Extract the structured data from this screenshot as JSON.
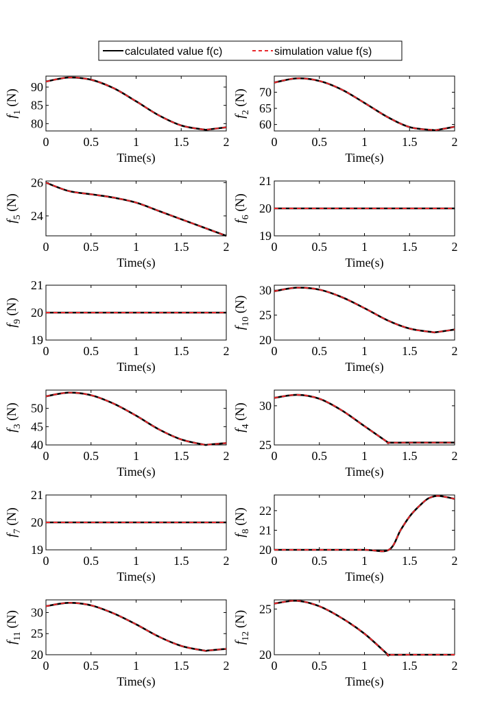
{
  "legend": {
    "items": [
      {
        "label": "calculated value f(c)",
        "color": "#000000",
        "style": "solid"
      },
      {
        "label": "simulation value f(s)",
        "color": "#e8262a",
        "style": "dashed"
      }
    ]
  },
  "chart_data": [
    {
      "type": "line",
      "ylabel_main": "f",
      "ylabel_sub": "1",
      "ylabel_unit": "(N)",
      "xlabel": "Time(s)",
      "xlim": [
        0,
        2
      ],
      "ylim": [
        78,
        93
      ],
      "xticks": [
        "0",
        "0.5",
        "1",
        "1.5",
        "2"
      ],
      "yticks": [
        80,
        85,
        90
      ],
      "series": [
        {
          "name": "calculated value f(c)",
          "x": [
            0,
            0.25,
            0.5,
            0.75,
            1.0,
            1.25,
            1.5,
            1.75,
            1.8,
            2.0
          ],
          "values": [
            91.5,
            92.6,
            92.0,
            89.7,
            86.1,
            82.3,
            79.5,
            78.4,
            78.4,
            79.0
          ]
        },
        {
          "name": "simulation value f(s)",
          "x": [
            0,
            0.25,
            0.5,
            0.75,
            1.0,
            1.25,
            1.5,
            1.75,
            1.8,
            2.0
          ],
          "values": [
            91.5,
            92.6,
            92.0,
            89.7,
            86.1,
            82.3,
            79.5,
            78.4,
            78.4,
            79.0
          ]
        }
      ]
    },
    {
      "type": "line",
      "ylabel_main": "f",
      "ylabel_sub": "2",
      "ylabel_unit": "(N)",
      "xlabel": "Time(s)",
      "xlim": [
        0,
        2
      ],
      "ylim": [
        58,
        75
      ],
      "xticks": [
        "0",
        "0.5",
        "1",
        "1.5",
        "2"
      ],
      "yticks": [
        60,
        65,
        70
      ],
      "series": [
        {
          "name": "calculated value f(c)",
          "x": [
            0,
            0.25,
            0.5,
            0.75,
            1.0,
            1.25,
            1.5,
            1.75,
            1.8,
            2.0
          ],
          "values": [
            73.0,
            74.3,
            73.5,
            70.8,
            66.7,
            62.4,
            59.2,
            58.3,
            58.3,
            59.3
          ]
        },
        {
          "name": "simulation value f(s)",
          "x": [
            0,
            0.25,
            0.5,
            0.75,
            1.0,
            1.25,
            1.5,
            1.75,
            1.8,
            2.0
          ],
          "values": [
            73.0,
            74.3,
            73.5,
            70.8,
            66.7,
            62.4,
            59.2,
            58.3,
            58.3,
            59.3
          ]
        }
      ]
    },
    {
      "type": "line",
      "ylabel_main": "f",
      "ylabel_sub": "5",
      "ylabel_unit": "(N)",
      "xlabel": "Time(s)",
      "xlim": [
        0,
        2
      ],
      "ylim": [
        22.8,
        26.1
      ],
      "xticks": [
        "0",
        "0.5",
        "1",
        "1.5",
        "2"
      ],
      "yticks": [
        24,
        26
      ],
      "series": [
        {
          "name": "calculated value f(c)",
          "x": [
            0,
            0.25,
            0.5,
            0.75,
            1.0,
            1.25,
            1.5,
            1.75,
            2.0
          ],
          "values": [
            26.0,
            25.5,
            25.3,
            25.1,
            24.8,
            24.3,
            23.8,
            23.3,
            22.8
          ]
        },
        {
          "name": "simulation value f(s)",
          "x": [
            0,
            0.25,
            0.5,
            0.75,
            1.0,
            1.25,
            1.5,
            1.75,
            2.0
          ],
          "values": [
            26.0,
            25.5,
            25.3,
            25.1,
            24.8,
            24.3,
            23.8,
            23.3,
            22.8
          ]
        }
      ]
    },
    {
      "type": "line",
      "ylabel_main": "f",
      "ylabel_sub": "6",
      "ylabel_unit": "(N)",
      "xlabel": "Time(s)",
      "xlim": [
        0,
        2
      ],
      "ylim": [
        19,
        21
      ],
      "xticks": [
        "0",
        "0.5",
        "1",
        "1.5",
        "2"
      ],
      "yticks": [
        19,
        20,
        21
      ],
      "series": [
        {
          "name": "calculated value f(c)",
          "x": [
            0,
            2
          ],
          "values": [
            20,
            20
          ]
        },
        {
          "name": "simulation value f(s)",
          "x": [
            0,
            2
          ],
          "values": [
            20,
            20
          ]
        }
      ]
    },
    {
      "type": "line",
      "ylabel_main": "f",
      "ylabel_sub": "9",
      "ylabel_unit": "(N)",
      "xlabel": "Time(s)",
      "xlim": [
        0,
        2
      ],
      "ylim": [
        19,
        21
      ],
      "xticks": [
        "0",
        "0.5",
        "1",
        "1.5",
        "2"
      ],
      "yticks": [
        19,
        20,
        21
      ],
      "series": [
        {
          "name": "calculated value f(c)",
          "x": [
            0,
            2
          ],
          "values": [
            20,
            20
          ]
        },
        {
          "name": "simulation value f(s)",
          "x": [
            0,
            2
          ],
          "values": [
            20,
            20
          ]
        }
      ]
    },
    {
      "type": "line",
      "ylabel_main": "f",
      "ylabel_sub": "10",
      "ylabel_unit": "(N)",
      "xlabel": "Time(s)",
      "xlim": [
        0,
        2
      ],
      "ylim": [
        20,
        31
      ],
      "xticks": [
        "0",
        "0.5",
        "1",
        "1.5",
        "2"
      ],
      "yticks": [
        20,
        25,
        30
      ],
      "series": [
        {
          "name": "calculated value f(c)",
          "x": [
            0,
            0.25,
            0.5,
            0.75,
            1.0,
            1.25,
            1.5,
            1.75,
            1.8,
            2.0
          ],
          "values": [
            29.8,
            30.5,
            30.1,
            28.6,
            26.4,
            24.0,
            22.3,
            21.6,
            21.6,
            22.1
          ]
        },
        {
          "name": "simulation value f(s)",
          "x": [
            0,
            0.25,
            0.5,
            0.75,
            1.0,
            1.25,
            1.5,
            1.75,
            1.8,
            2.0
          ],
          "values": [
            29.8,
            30.5,
            30.1,
            28.6,
            26.4,
            24.0,
            22.3,
            21.6,
            21.6,
            22.1
          ]
        }
      ]
    },
    {
      "type": "line",
      "ylabel_main": "f",
      "ylabel_sub": "3",
      "ylabel_unit": "(N)",
      "xlabel": "Time(s)",
      "xlim": [
        0,
        2
      ],
      "ylim": [
        40,
        55
      ],
      "xticks": [
        "0",
        "0.5",
        "1",
        "1.5",
        "2"
      ],
      "yticks": [
        40,
        45,
        50
      ],
      "series": [
        {
          "name": "calculated value f(c)",
          "x": [
            0,
            0.25,
            0.5,
            0.75,
            1.0,
            1.25,
            1.5,
            1.75,
            1.8,
            2.0
          ],
          "values": [
            53.3,
            54.3,
            53.6,
            51.3,
            48.0,
            44.3,
            41.5,
            40.1,
            40.1,
            40.5
          ]
        },
        {
          "name": "simulation value f(s)",
          "x": [
            0,
            0.25,
            0.5,
            0.75,
            1.0,
            1.25,
            1.5,
            1.75,
            1.8,
            2.0
          ],
          "values": [
            53.3,
            54.3,
            53.6,
            51.3,
            48.0,
            44.3,
            41.5,
            40.1,
            40.1,
            40.5
          ]
        }
      ]
    },
    {
      "type": "line",
      "ylabel_main": "f",
      "ylabel_sub": "4",
      "ylabel_unit": "(N)",
      "xlabel": "Time(s)",
      "xlim": [
        0,
        2
      ],
      "ylim": [
        25,
        32
      ],
      "xticks": [
        "0",
        "0.5",
        "1",
        "1.5",
        "2"
      ],
      "yticks": [
        25,
        30
      ],
      "series": [
        {
          "name": "calculated value f(c)",
          "x": [
            0,
            0.25,
            0.5,
            0.75,
            1.0,
            1.25,
            1.27,
            1.5,
            2.0
          ],
          "values": [
            31.0,
            31.4,
            30.9,
            29.4,
            27.4,
            25.4,
            25.3,
            25.3,
            25.3
          ]
        },
        {
          "name": "simulation value f(s)",
          "x": [
            0,
            0.25,
            0.5,
            0.75,
            1.0,
            1.25,
            1.27,
            1.5,
            2.0
          ],
          "values": [
            31.0,
            31.4,
            30.9,
            29.4,
            27.4,
            25.4,
            25.3,
            25.3,
            25.3
          ]
        }
      ]
    },
    {
      "type": "line",
      "ylabel_main": "f",
      "ylabel_sub": "7",
      "ylabel_unit": "(N)",
      "xlabel": "Time(s)",
      "xlim": [
        0,
        2
      ],
      "ylim": [
        19,
        21
      ],
      "xticks": [
        "0",
        "0.5",
        "1",
        "1.5",
        "2"
      ],
      "yticks": [
        19,
        20,
        21
      ],
      "series": [
        {
          "name": "calculated value f(c)",
          "x": [
            0,
            2
          ],
          "values": [
            20,
            20
          ]
        },
        {
          "name": "simulation value f(s)",
          "x": [
            0,
            2
          ],
          "values": [
            20,
            20
          ]
        }
      ]
    },
    {
      "type": "line",
      "ylabel_main": "f",
      "ylabel_sub": "8",
      "ylabel_unit": "(N)",
      "xlabel": "Time(s)",
      "xlim": [
        0,
        2
      ],
      "ylim": [
        20,
        22.8
      ],
      "xticks": [
        "0",
        "0.5",
        "1",
        "1.5",
        "2"
      ],
      "yticks": [
        20,
        21,
        22
      ],
      "series": [
        {
          "name": "calculated value f(c)",
          "x": [
            0,
            0.5,
            1.0,
            1.27,
            1.4,
            1.5,
            1.6,
            1.7,
            1.8,
            1.9,
            2.0
          ],
          "values": [
            20.0,
            20.0,
            20.0,
            20.0,
            21.0,
            21.7,
            22.2,
            22.6,
            22.75,
            22.7,
            22.6
          ]
        },
        {
          "name": "simulation value f(s)",
          "x": [
            0,
            0.5,
            1.0,
            1.27,
            1.4,
            1.5,
            1.6,
            1.7,
            1.8,
            1.9,
            2.0
          ],
          "values": [
            20.0,
            20.0,
            20.0,
            20.0,
            21.0,
            21.7,
            22.2,
            22.6,
            22.75,
            22.7,
            22.6
          ]
        }
      ]
    },
    {
      "type": "line",
      "ylabel_main": "f",
      "ylabel_sub": "11",
      "ylabel_unit": "(N)",
      "xlabel": "Time(s)",
      "xlim": [
        0,
        2
      ],
      "ylim": [
        20,
        33
      ],
      "xticks": [
        "0",
        "0.5",
        "1",
        "1.5",
        "2"
      ],
      "yticks": [
        20,
        25,
        30
      ],
      "series": [
        {
          "name": "calculated value f(c)",
          "x": [
            0,
            0.25,
            0.5,
            0.75,
            1.0,
            1.25,
            1.5,
            1.75,
            1.8,
            2.0
          ],
          "values": [
            31.5,
            32.3,
            31.7,
            29.8,
            27.2,
            24.3,
            22.1,
            21.0,
            21.0,
            21.4
          ]
        },
        {
          "name": "simulation value f(s)",
          "x": [
            0,
            0.25,
            0.5,
            0.75,
            1.0,
            1.25,
            1.5,
            1.75,
            1.8,
            2.0
          ],
          "values": [
            31.5,
            32.3,
            31.7,
            29.8,
            27.2,
            24.3,
            22.1,
            21.0,
            21.0,
            21.4
          ]
        }
      ]
    },
    {
      "type": "line",
      "ylabel_main": "f",
      "ylabel_sub": "12",
      "ylabel_unit": "(N)",
      "xlabel": "Time(s)",
      "xlim": [
        0,
        2
      ],
      "ylim": [
        20,
        26
      ],
      "xticks": [
        "0",
        "0.5",
        "1",
        "1.5",
        "2"
      ],
      "yticks": [
        20,
        25
      ],
      "series": [
        {
          "name": "calculated value f(c)",
          "x": [
            0,
            0.25,
            0.5,
            0.75,
            1.0,
            1.25,
            1.27,
            1.5,
            2.0
          ],
          "values": [
            25.6,
            25.9,
            25.3,
            24.0,
            22.3,
            20.1,
            20.0,
            20.0,
            20.0
          ]
        },
        {
          "name": "simulation value f(s)",
          "x": [
            0,
            0.25,
            0.5,
            0.75,
            1.0,
            1.25,
            1.27,
            1.5,
            2.0
          ],
          "values": [
            25.6,
            25.9,
            25.3,
            24.0,
            22.3,
            20.1,
            20.0,
            20.0,
            20.0
          ]
        }
      ]
    }
  ]
}
